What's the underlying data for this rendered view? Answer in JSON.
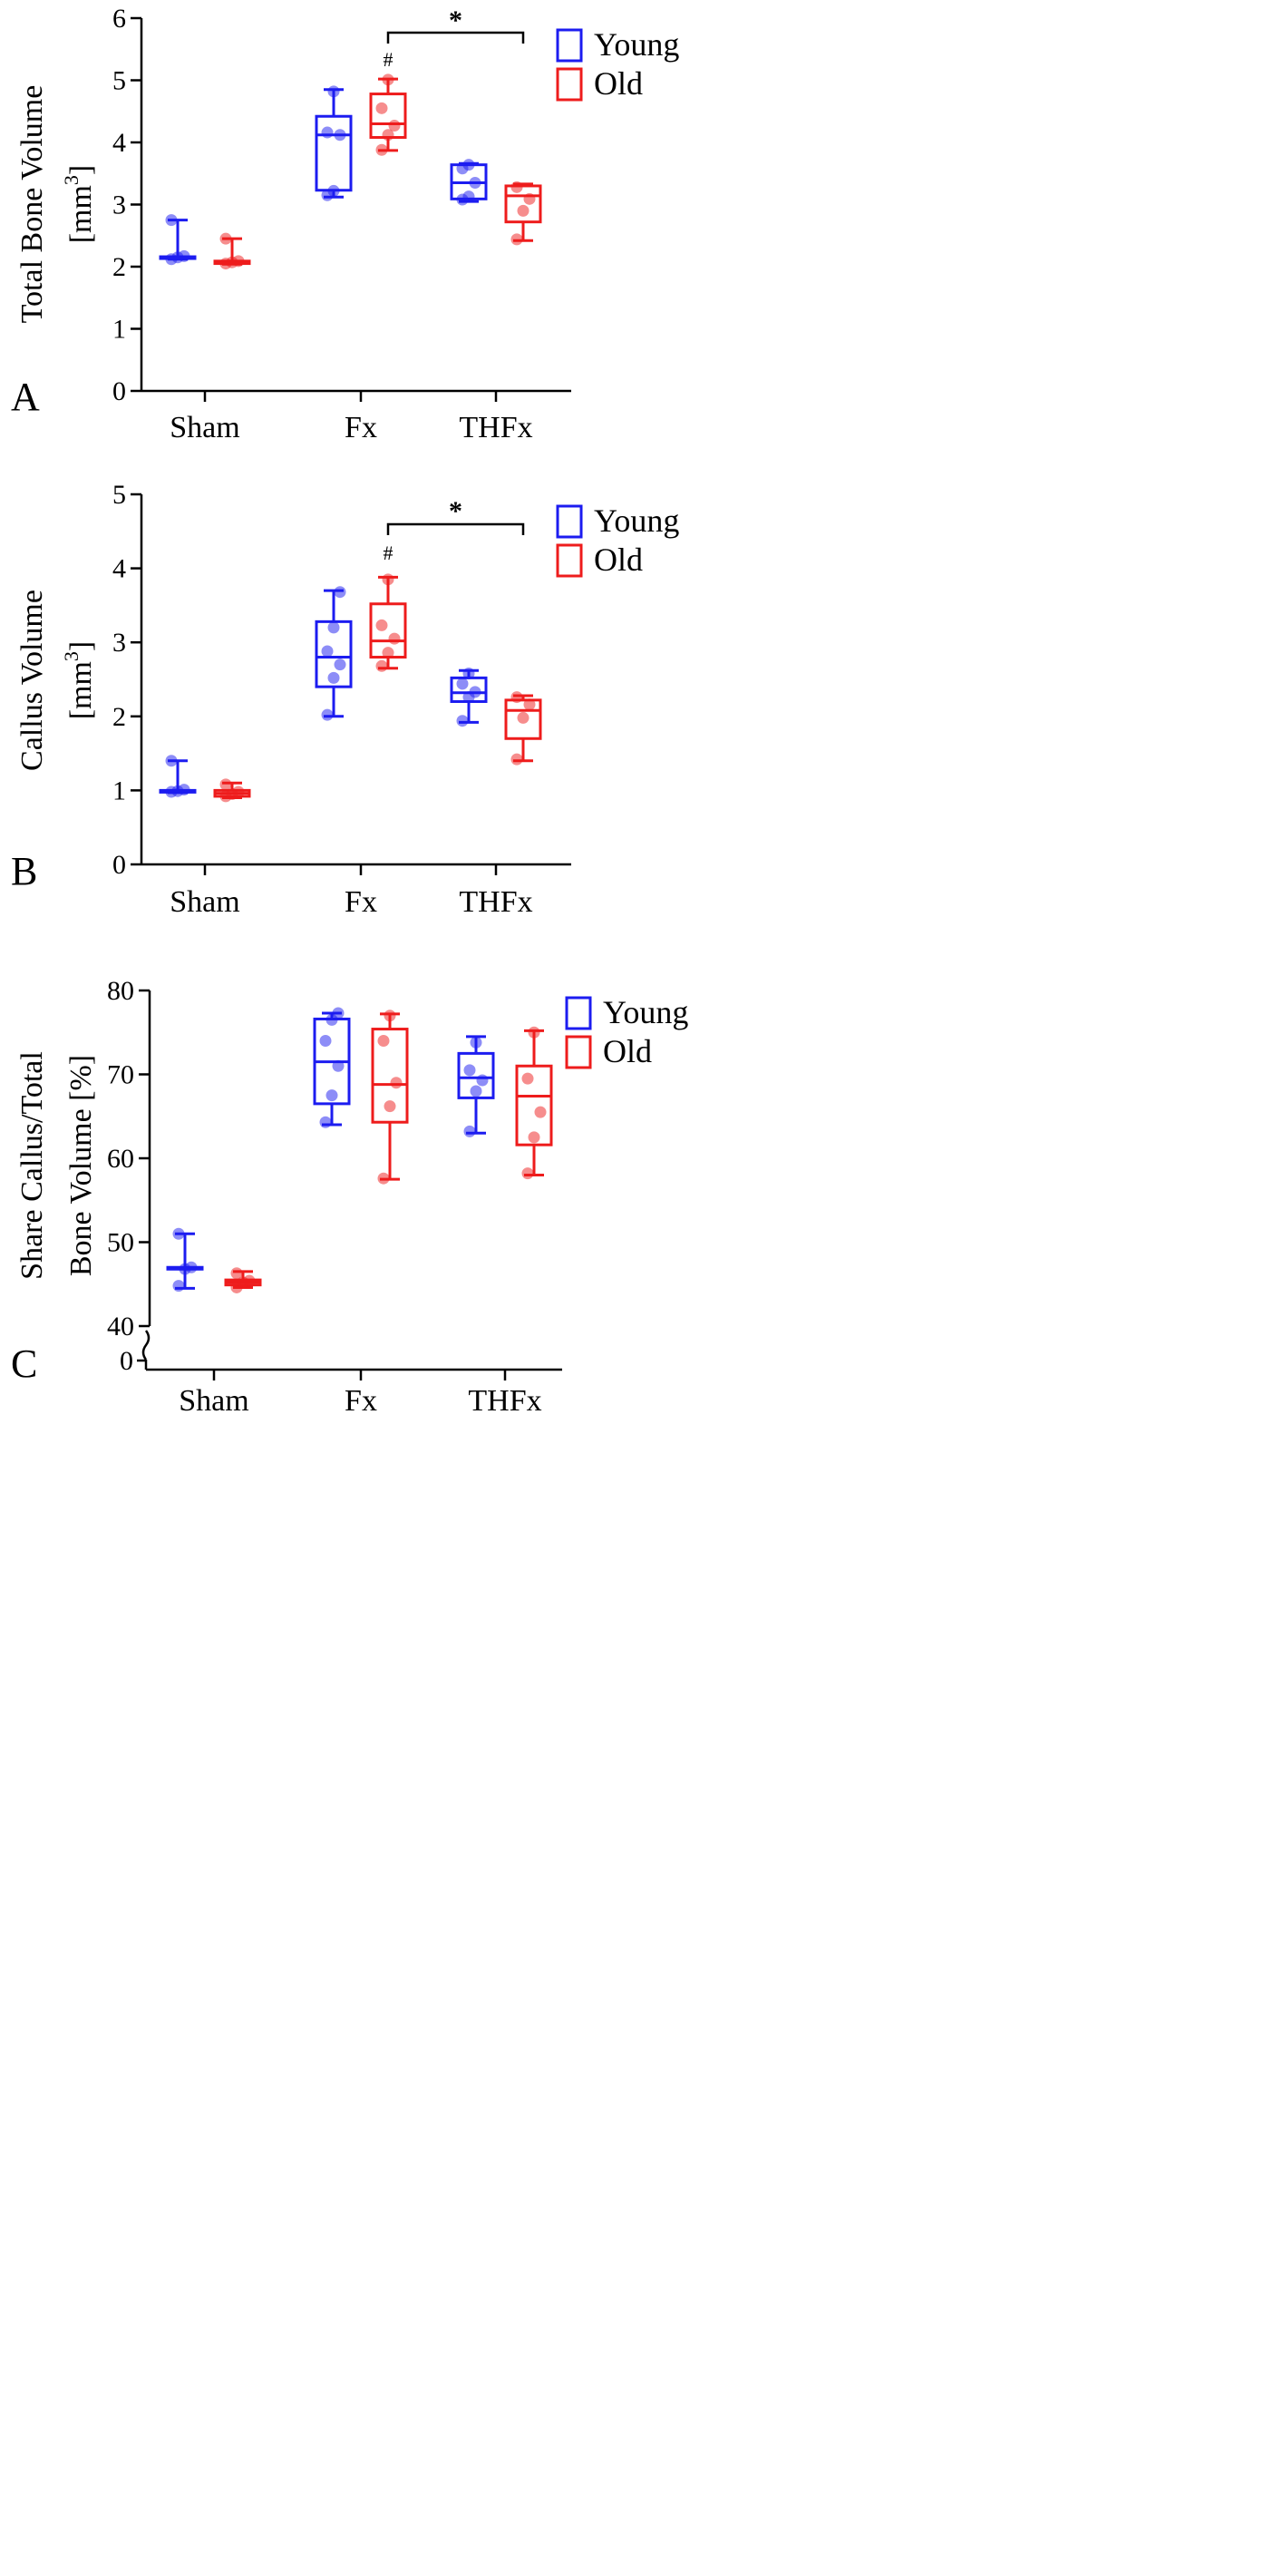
{
  "colors": {
    "young": "#1c1cf0",
    "old": "#ee1c1c",
    "axis": "#000000"
  },
  "chart_data": [
    {
      "id": "A",
      "type": "box",
      "panel_label": "A",
      "ylabel": [
        "Total Bone Volume",
        "[mm",
        "3",
        "]"
      ],
      "categories": [
        "Sham",
        "Fx",
        "THFx"
      ],
      "ylim": [
        0,
        6
      ],
      "yticks": [
        0,
        1,
        2,
        3,
        4,
        5,
        6
      ],
      "legend": {
        "position": "top-right",
        "entries": [
          "Young",
          "Old"
        ]
      },
      "series": [
        {
          "name": "Young",
          "color_key": "young",
          "boxes": [
            {
              "min": 2.12,
              "q1": 2.14,
              "median": 2.15,
              "q3": 2.16,
              "max": 2.75,
              "points": [
                2.12,
                2.15,
                2.17,
                2.75
              ]
            },
            {
              "min": 3.12,
              "q1": 3.23,
              "median": 4.12,
              "q3": 4.42,
              "max": 4.85,
              "points": [
                3.15,
                3.22,
                4.12,
                4.16,
                4.82
              ]
            },
            {
              "min": 3.05,
              "q1": 3.09,
              "median": 3.35,
              "q3": 3.64,
              "max": 3.66,
              "points": [
                3.08,
                3.13,
                3.35,
                3.58,
                3.64
              ]
            }
          ]
        },
        {
          "name": "Old",
          "color_key": "old",
          "boxes": [
            {
              "min": 2.04,
              "q1": 2.05,
              "median": 2.07,
              "q3": 2.09,
              "max": 2.45,
              "points": [
                2.05,
                2.07,
                2.09,
                2.45
              ]
            },
            {
              "min": 3.87,
              "q1": 4.08,
              "median": 4.3,
              "q3": 4.78,
              "max": 5.02,
              "points": [
                3.88,
                4.12,
                4.27,
                4.55,
                5.01
              ]
            },
            {
              "min": 2.42,
              "q1": 2.72,
              "median": 3.14,
              "q3": 3.3,
              "max": 3.33,
              "points": [
                2.44,
                2.9,
                3.09,
                3.28
              ]
            }
          ]
        }
      ],
      "annotations": {
        "hash": {
          "text": "#",
          "category": 1,
          "series": 1
        },
        "bracket": {
          "text": "*",
          "from_category": 1,
          "to_category": 2
        }
      }
    },
    {
      "id": "B",
      "type": "box",
      "panel_label": "B",
      "ylabel": [
        "Callus Volume",
        "[mm",
        "3",
        "]"
      ],
      "categories": [
        "Sham",
        "Fx",
        "THFx"
      ],
      "ylim": [
        0,
        5
      ],
      "yticks": [
        0,
        1,
        2,
        3,
        4,
        5
      ],
      "legend": {
        "position": "top-right",
        "entries": [
          "Young",
          "Old"
        ]
      },
      "series": [
        {
          "name": "Young",
          "color_key": "young",
          "boxes": [
            {
              "min": 0.97,
              "q1": 0.98,
              "median": 0.99,
              "q3": 1.0,
              "max": 1.4,
              "points": [
                0.98,
                0.99,
                1.01,
                1.4
              ]
            },
            {
              "min": 2.0,
              "q1": 2.4,
              "median": 2.8,
              "q3": 3.28,
              "max": 3.7,
              "points": [
                2.02,
                2.52,
                2.7,
                2.88,
                3.2,
                3.68
              ]
            },
            {
              "min": 1.92,
              "q1": 2.2,
              "median": 2.32,
              "q3": 2.52,
              "max": 2.62,
              "points": [
                1.94,
                2.26,
                2.33,
                2.44,
                2.58
              ]
            }
          ]
        },
        {
          "name": "Old",
          "color_key": "old",
          "boxes": [
            {
              "min": 0.9,
              "q1": 0.92,
              "median": 0.96,
              "q3": 1.0,
              "max": 1.1,
              "points": [
                0.92,
                0.95,
                0.98,
                1.08
              ]
            },
            {
              "min": 2.65,
              "q1": 2.8,
              "median": 3.02,
              "q3": 3.52,
              "max": 3.88,
              "points": [
                2.68,
                2.86,
                3.05,
                3.23,
                3.85
              ]
            },
            {
              "min": 1.4,
              "q1": 1.7,
              "median": 2.08,
              "q3": 2.22,
              "max": 2.28,
              "points": [
                1.42,
                1.98,
                2.16,
                2.26
              ]
            }
          ]
        }
      ],
      "annotations": {
        "hash": {
          "text": "#",
          "category": 1,
          "series": 1
        },
        "bracket": {
          "text": "*",
          "from_category": 1,
          "to_category": 2
        }
      }
    },
    {
      "id": "C",
      "type": "box",
      "panel_label": "C",
      "ylabel": [
        "Share Callus/Total",
        "Bone Volume [%]"
      ],
      "categories": [
        "Sham",
        "Fx",
        "THFx"
      ],
      "ylim": [
        40,
        80
      ],
      "yticks": [
        40,
        50,
        60,
        70,
        80
      ],
      "broken_axis": {
        "lower_tick": 0
      },
      "legend": {
        "position": "top-right",
        "entries": [
          "Young",
          "Old"
        ]
      },
      "series": [
        {
          "name": "Young",
          "color_key": "young",
          "boxes": [
            {
              "min": 44.5,
              "q1": 46.8,
              "median": 46.9,
              "q3": 47.0,
              "max": 51.0,
              "points": [
                44.8,
                46.8,
                47.0,
                51.0
              ]
            },
            {
              "min": 64.0,
              "q1": 66.5,
              "median": 71.5,
              "q3": 76.6,
              "max": 77.3,
              "points": [
                64.3,
                67.5,
                71.0,
                74.0,
                76.5,
                77.3
              ]
            },
            {
              "min": 63.0,
              "q1": 67.2,
              "median": 69.6,
              "q3": 72.5,
              "max": 74.5,
              "points": [
                63.2,
                68.0,
                69.3,
                70.5,
                73.8
              ]
            }
          ]
        },
        {
          "name": "Old",
          "color_key": "old",
          "boxes": [
            {
              "min": 44.6,
              "q1": 44.9,
              "median": 45.2,
              "q3": 45.5,
              "max": 46.5,
              "points": [
                44.6,
                45.2,
                45.4,
                46.3
              ]
            },
            {
              "min": 57.5,
              "q1": 64.3,
              "median": 68.8,
              "q3": 75.4,
              "max": 77.2,
              "points": [
                57.6,
                66.2,
                69.0,
                74.0,
                77.0
              ]
            },
            {
              "min": 58.0,
              "q1": 61.6,
              "median": 67.4,
              "q3": 71.0,
              "max": 75.2,
              "points": [
                58.2,
                62.5,
                65.5,
                69.5,
                75.0
              ]
            }
          ]
        }
      ],
      "annotations": {}
    }
  ]
}
